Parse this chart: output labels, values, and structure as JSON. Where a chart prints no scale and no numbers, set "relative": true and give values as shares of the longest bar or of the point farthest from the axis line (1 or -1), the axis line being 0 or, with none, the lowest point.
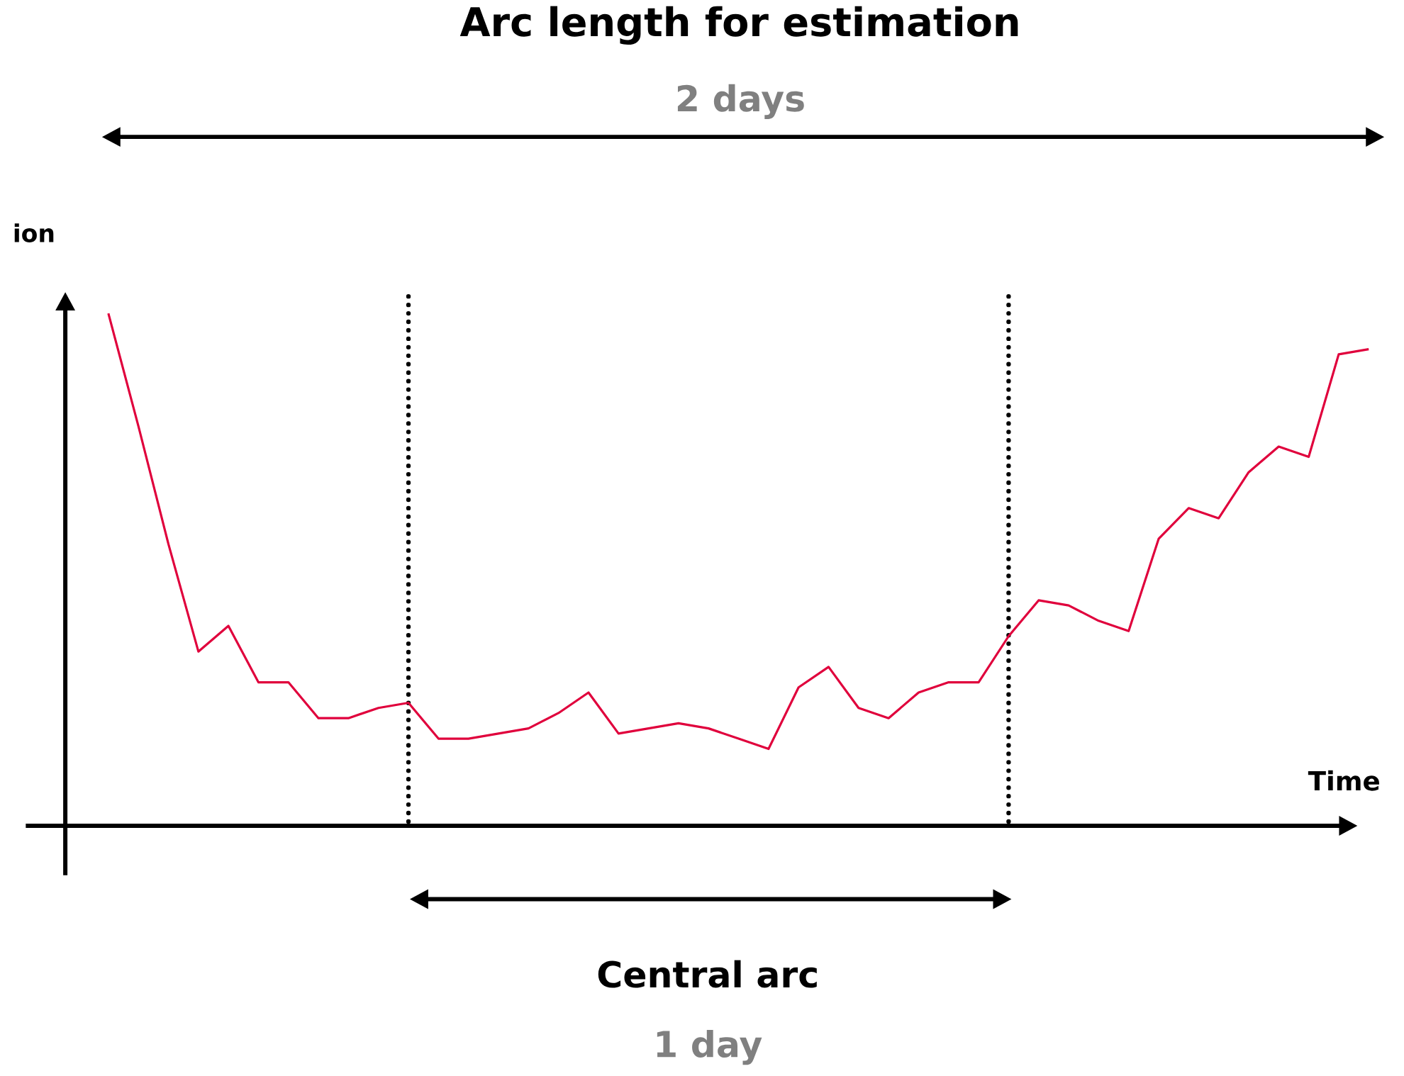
{
  "chart_data": {
    "type": "line",
    "title": "Arc length for estimation",
    "xlabel": "Time",
    "ylabel": "ion",
    "relative": true,
    "annotations": [
      "2 days",
      "Central arc",
      "1 day"
    ],
    "categories": [
      null,
      null,
      null,
      null,
      null,
      null,
      null,
      null,
      null,
      null,
      null,
      null,
      null,
      null,
      null,
      null,
      null,
      null,
      null,
      null,
      null,
      null,
      null,
      null,
      null,
      null,
      null,
      null,
      null,
      null,
      null,
      null,
      null,
      null,
      null,
      null,
      null,
      null,
      null,
      null,
      null,
      null,
      null
    ],
    "series": [
      {
        "color": "#e0003c",
        "values": [
          1.0,
          0.78,
          0.55,
          0.34,
          0.39,
          0.28,
          0.28,
          0.21,
          0.21,
          0.23,
          0.24,
          0.17,
          0.17,
          0.18,
          0.19,
          0.22,
          0.26,
          0.18,
          0.19,
          0.2,
          0.19,
          0.17,
          0.15,
          0.27,
          0.31,
          0.23,
          0.21,
          0.26,
          0.28,
          0.28,
          0.37,
          0.44,
          0.43,
          0.4,
          0.38,
          0.56,
          0.62,
          0.6,
          0.69,
          0.74,
          0.72,
          0.92,
          0.93
        ]
      }
    ],
    "line_style": "solid",
    "marker": "none"
  }
}
